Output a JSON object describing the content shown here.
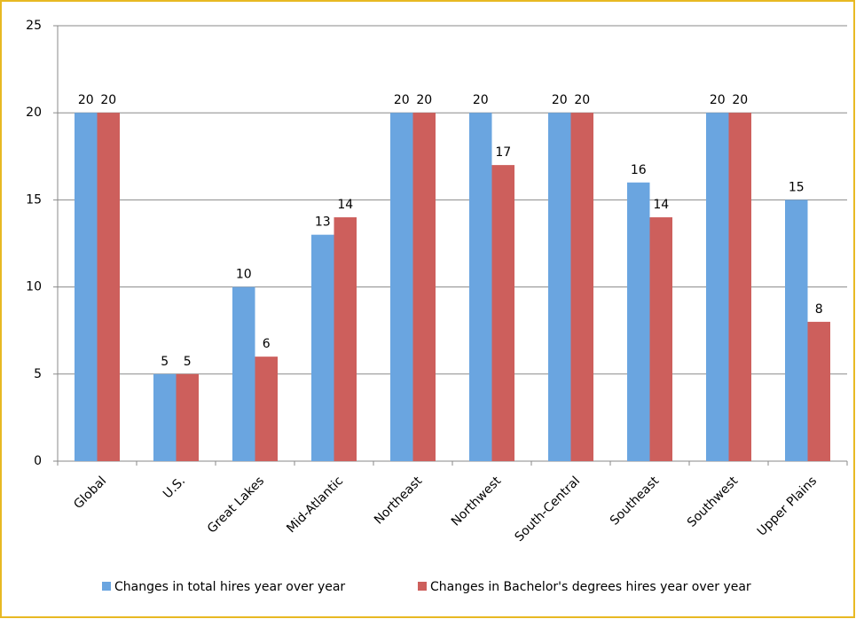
{
  "chart_data": {
    "type": "bar",
    "categories": [
      "Global",
      "U.S.",
      "Great Lakes",
      "Mid-Atlantic",
      "Northeast",
      "Northwest",
      "South-Central",
      "Southeast",
      "Southwest",
      "Upper Plains"
    ],
    "series": [
      {
        "name": "Changes in total hires year over year",
        "color": "#6aa5e0",
        "values": [
          20,
          5,
          10,
          13,
          20,
          20,
          20,
          16,
          20,
          15
        ]
      },
      {
        "name": "Changes in Bachelor's degrees hires year over year",
        "color": "#cd5f5c",
        "values": [
          20,
          5,
          6,
          14,
          20,
          17,
          20,
          14,
          20,
          8
        ]
      }
    ],
    "ylim": [
      0,
      25
    ],
    "yticks": [
      0,
      5,
      10,
      15,
      20,
      25
    ],
    "grid": true,
    "legend": "bottom"
  }
}
